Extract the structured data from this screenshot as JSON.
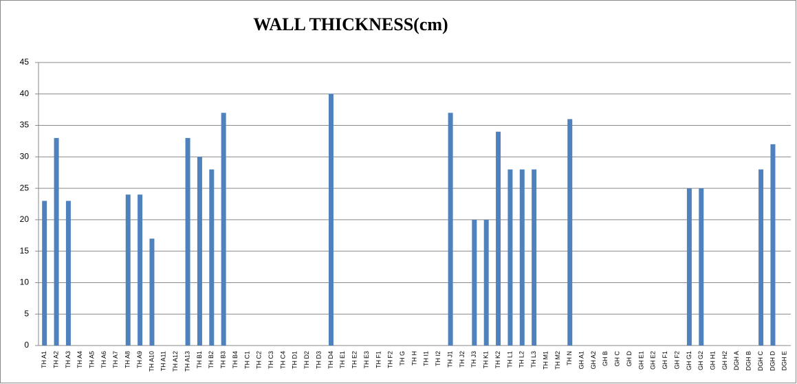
{
  "chart_data": {
    "type": "bar",
    "title": "WALL THICKNESS(cm)",
    "categories": [
      "TH A1",
      "TH A2",
      "TH A3",
      "TH A4",
      "TH A5",
      "TH A6",
      "TH A7",
      "TH A8",
      "TH A9",
      "TH A10",
      "TH A11",
      "TH A12",
      "TH A13",
      "TH B1",
      "TH B2",
      "TH B3",
      "TH B4",
      "TH C1",
      "TH C2",
      "TH C3",
      "TH C4",
      "TH D1",
      "TH D2",
      "TH D3",
      "TH D4",
      "TH E1",
      "TH E2",
      "TH E3",
      "TH F1",
      "TH F2",
      "TH G",
      "TH H",
      "TH I1",
      "TH I2",
      "TH J1",
      "TH J2",
      "TH J3",
      "TH K1",
      "TH K2",
      "TH L1",
      "TH L2",
      "TH L3",
      "TH M1",
      "TH M2",
      "TH N",
      "GH A1",
      "GH A2",
      "GH B",
      "GH C",
      "GH D",
      "GH E1",
      "GH E2",
      "GH F1",
      "GH F2",
      "GH G1",
      "GH G2",
      "GH H1",
      "GH H2",
      "DGH A",
      "DGH B",
      "DGH C",
      "DGH D",
      "DGH E"
    ],
    "values": [
      23,
      33,
      23,
      0,
      0,
      0,
      0,
      24,
      24,
      17,
      0,
      0,
      33,
      30,
      28,
      37,
      0,
      0,
      0,
      0,
      0,
      0,
      0,
      0,
      40,
      0,
      0,
      0,
      0,
      0,
      0,
      0,
      0,
      0,
      37,
      0,
      20,
      20,
      34,
      28,
      28,
      28,
      0,
      0,
      36,
      0,
      0,
      0,
      0,
      0,
      0,
      0,
      0,
      0,
      25,
      25,
      0,
      0,
      0,
      0,
      28,
      32,
      0
    ],
    "color": "#4f81bd",
    "ylim": [
      0,
      45
    ],
    "yticks": [
      0,
      5,
      10,
      15,
      20,
      25,
      30,
      35,
      40,
      45
    ],
    "grid": true
  }
}
